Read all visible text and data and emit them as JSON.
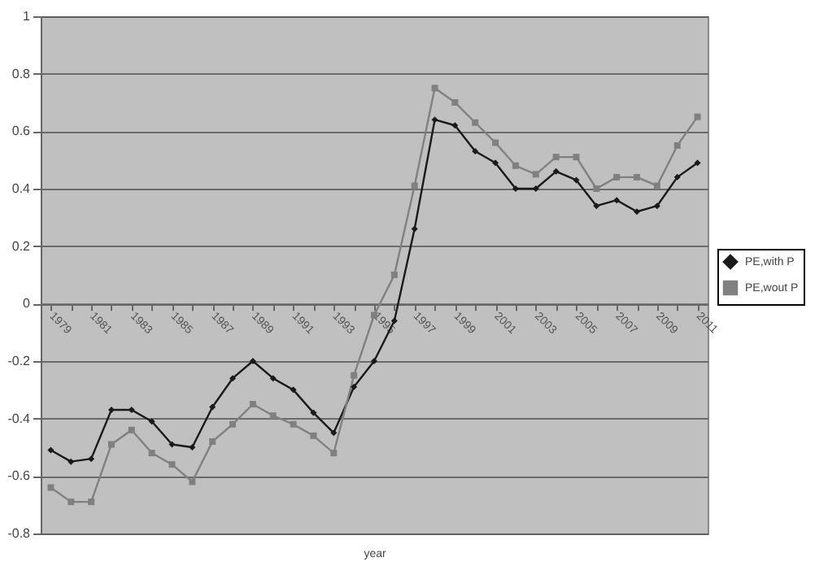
{
  "chart_data": {
    "type": "line",
    "xlabel": "year",
    "categories": [
      "1979",
      null,
      "1981",
      null,
      "1983",
      null,
      "1985",
      null,
      "1987",
      null,
      "1989",
      null,
      "1991",
      null,
      "1993",
      null,
      "1995",
      null,
      "1997",
      null,
      "1999",
      null,
      "2001",
      null,
      "2003",
      null,
      "2005",
      null,
      "2007",
      null,
      "2009",
      null,
      "2011"
    ],
    "series": [
      {
        "name": "PE,with P",
        "color": "#1a1a1a",
        "marker": "diamond",
        "values": [
          -0.51,
          -0.55,
          -0.54,
          -0.37,
          -0.37,
          -0.41,
          -0.49,
          -0.5,
          -0.36,
          -0.26,
          -0.2,
          -0.26,
          -0.3,
          -0.38,
          -0.45,
          -0.29,
          -0.2,
          -0.06,
          0.26,
          0.64,
          0.62,
          0.53,
          0.49,
          0.4,
          0.4,
          0.46,
          0.43,
          0.34,
          0.36,
          0.32,
          0.34,
          0.44,
          0.49
        ]
      },
      {
        "name": "PE,wout P",
        "color": "#808080",
        "marker": "square",
        "values": [
          -0.64,
          -0.69,
          -0.69,
          -0.49,
          -0.44,
          -0.52,
          -0.56,
          -0.62,
          -0.48,
          -0.42,
          -0.35,
          -0.39,
          -0.42,
          -0.46,
          -0.52,
          -0.25,
          -0.04,
          0.1,
          0.41,
          0.75,
          0.7,
          0.63,
          0.56,
          0.48,
          0.45,
          0.51,
          0.51,
          0.4,
          0.44,
          0.44,
          0.41,
          0.55,
          0.65
        ]
      }
    ],
    "ylim": [
      -0.8,
      1
    ],
    "yticks": [
      -0.8,
      -0.6,
      -0.4,
      -0.2,
      0,
      0.2,
      0.4,
      0.6,
      0.8,
      1
    ],
    "grid": "y",
    "legend": "right"
  }
}
